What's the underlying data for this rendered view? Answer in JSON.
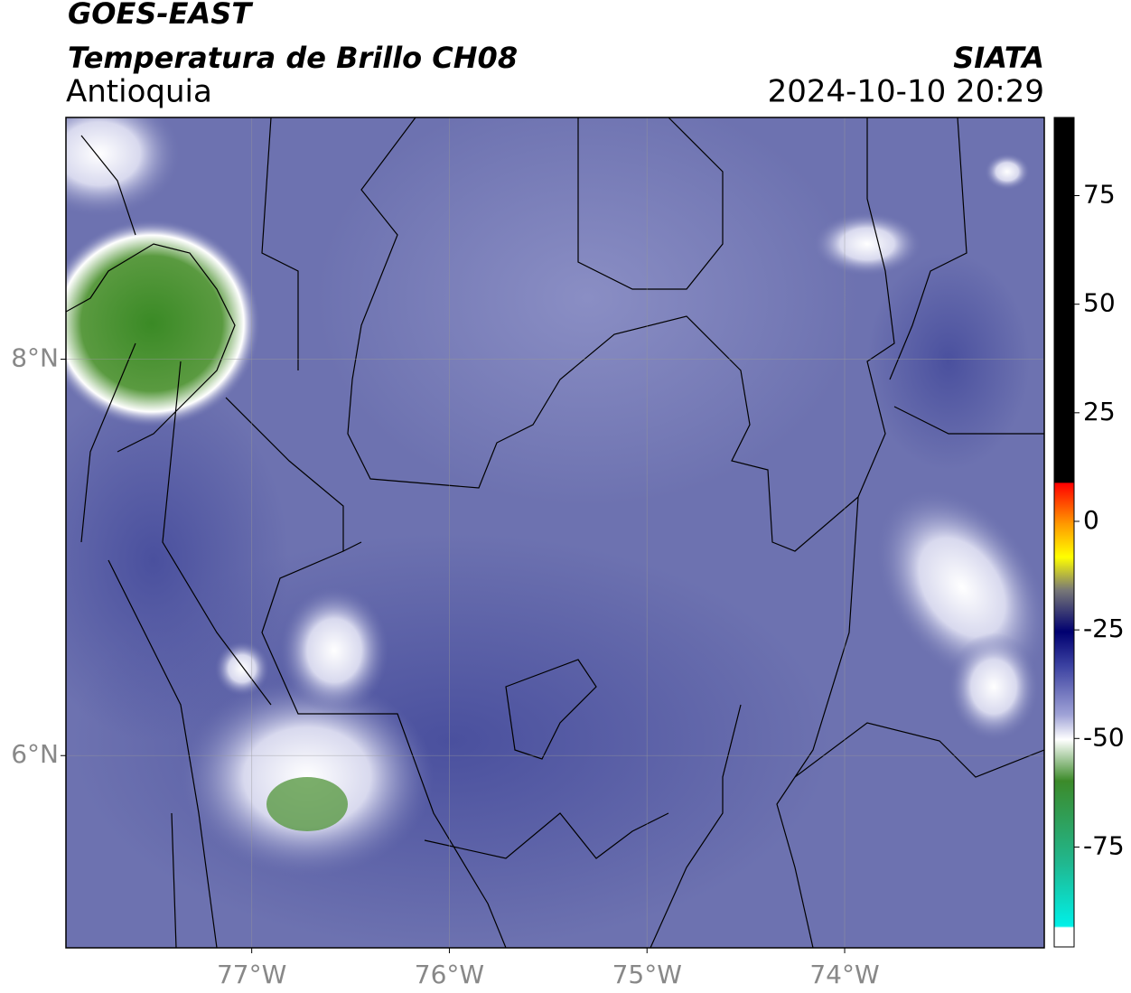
{
  "header": {
    "title": "GOES-EAST",
    "subtitle": "Temperatura de Brillo CH08",
    "region": "Antioquia",
    "source": "SIATA",
    "datetime": "2024-10-10 20:29"
  },
  "map": {
    "xlim": [
      -77.94,
      -72.99
    ],
    "ylim": [
      5.03,
      9.22
    ],
    "xticks": [
      {
        "value": -77,
        "label": "77°W"
      },
      {
        "value": -76,
        "label": "76°W"
      },
      {
        "value": -75,
        "label": "75°W"
      },
      {
        "value": -74,
        "label": "74°W"
      }
    ],
    "yticks": [
      {
        "value": 8,
        "label": "8°N"
      },
      {
        "value": 6,
        "label": "6°N"
      }
    ],
    "grid": true
  },
  "colorbar": {
    "lim": [
      -98,
      93
    ],
    "ticks": [
      75,
      50,
      25,
      0,
      -25,
      -50,
      -75
    ]
  }
}
